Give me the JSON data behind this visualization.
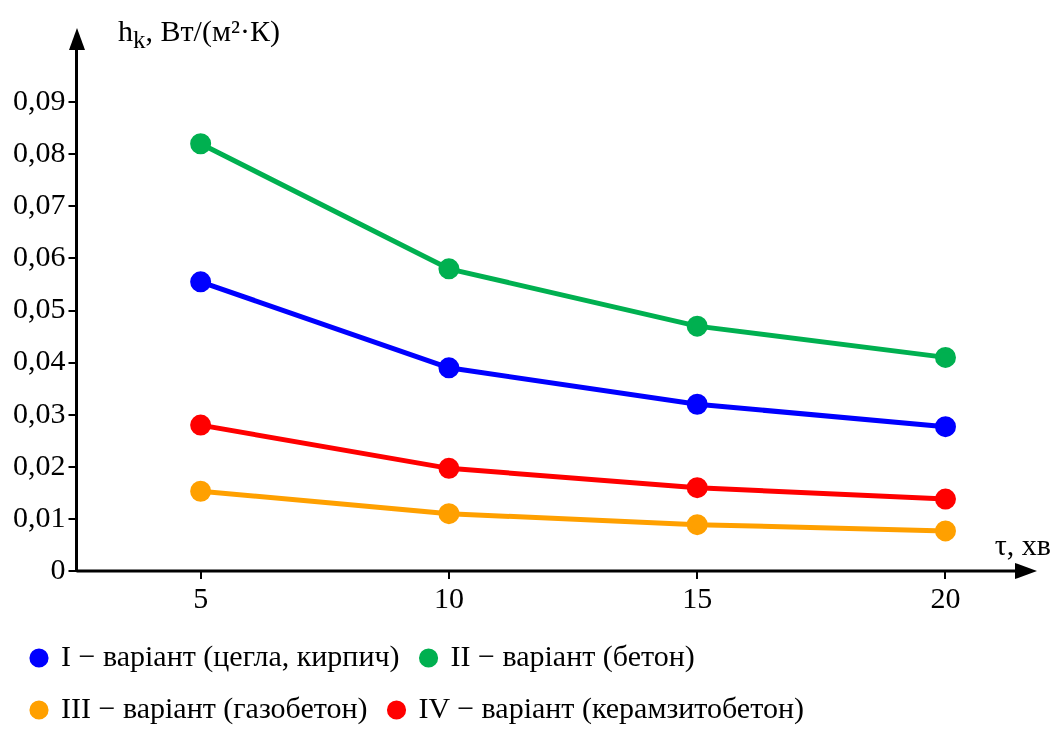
{
  "chart_data": {
    "type": "line",
    "xlabel": "τ, хв",
    "ylabel": "h$_{k}$, Вт/(м²·К)",
    "x": [
      5,
      10,
      15,
      20
    ],
    "series": [
      {
        "name": "I − варіант (цегла, кирпич)",
        "color": "#0000ff",
        "values": [
          0.0555,
          0.039,
          0.032,
          0.0277
        ]
      },
      {
        "name": "II − варіант (бетон)",
        "color": "#00b050",
        "values": [
          0.082,
          0.058,
          0.047,
          0.041
        ]
      },
      {
        "name": "III − варіант (газобетон)",
        "color": "#ffa000",
        "values": [
          0.0153,
          0.011,
          0.0089,
          0.0077
        ]
      },
      {
        "name": "IV − варіант (керамзитобетон)",
        "color": "#ff0000",
        "values": [
          0.028,
          0.0197,
          0.016,
          0.0138
        ]
      }
    ],
    "xlim": [
      2.5,
      21.4
    ],
    "xticks": [
      5,
      10,
      15,
      20
    ],
    "ylim": [
      0,
      0.1
    ],
    "yticks": [
      0,
      {
        "value": 0.01,
        "label": "0,01"
      },
      {
        "value": 0.02,
        "label": "0,02"
      },
      {
        "value": 0.03,
        "label": "0,03"
      },
      {
        "value": 0.04,
        "label": "0,04"
      },
      {
        "value": 0.05,
        "label": "0,05"
      },
      {
        "value": 0.06,
        "label": "0,06"
      },
      {
        "value": 0.07,
        "label": "0,07"
      },
      {
        "value": 0.08,
        "label": "0,08"
      },
      {
        "value": 0.09,
        "label": "0,09"
      }
    ],
    "grid": false,
    "legend": "bottom",
    "marker": "circle",
    "line_style": "solid"
  }
}
